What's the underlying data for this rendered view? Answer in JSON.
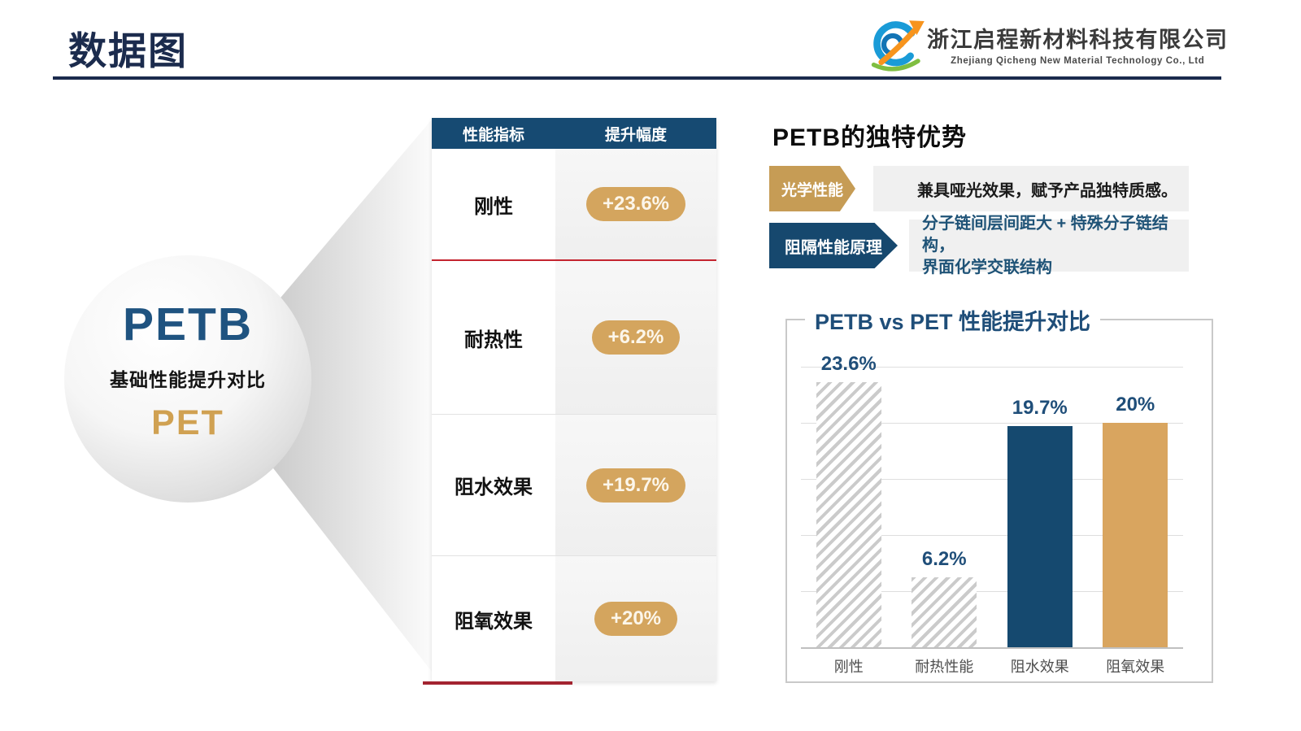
{
  "page": {
    "title": "数据图"
  },
  "logo": {
    "company_zh": "浙江启程新材料科技有限公司",
    "company_en": "Zhejiang Qicheng New Material Technology Co., Ltd"
  },
  "sphere": {
    "top": "PETB",
    "middle": "基础性能提升对比",
    "bottom": "PET"
  },
  "table": {
    "headers": [
      "性能指标",
      "提升幅度"
    ],
    "rows": [
      {
        "label": "刚性",
        "value": "+23.6%"
      },
      {
        "label": "耐热性",
        "value": "+6.2%"
      },
      {
        "label": "阻水效果",
        "value": "+19.7%"
      },
      {
        "label": "阻氧效果",
        "value": "+20%"
      }
    ]
  },
  "advantages": {
    "heading": "PETB的独特优势",
    "items": [
      {
        "tag": "光学性能",
        "text": "兼具哑光效果，赋予产品独特质感。"
      },
      {
        "tag": "阻隔性能原理",
        "text": "分子链间层间距大 + 特殊分子链结构，\n界面化学交联结构"
      }
    ]
  },
  "chart_data": {
    "type": "bar",
    "title": "PETB vs PET 性能提升对比",
    "categories": [
      "刚性",
      "耐热性能",
      "阻水效果",
      "阻氧效果"
    ],
    "values": [
      23.6,
      6.2,
      19.7,
      20
    ],
    "value_labels": [
      "23.6%",
      "6.2%",
      "19.7%",
      "20%"
    ],
    "bar_styles": [
      "hatched",
      "hatched",
      "solid-navy",
      "solid-gold"
    ],
    "ylim": [
      0,
      29
    ],
    "gridline_values": [
      5,
      10,
      15,
      20,
      25
    ],
    "grid": "on",
    "legend_position": "none",
    "colors": {
      "navy_bar": "#15496F",
      "gold_bar": "#D9A55F",
      "hatch_stripe": "#CBCBCB",
      "value_label": "#1F4E79"
    }
  },
  "colors": {
    "accent_navy": "#164A72",
    "accent_gold": "#D4A55E",
    "accent_red": "#C4242F",
    "title_navy": "#1B2B4D"
  }
}
